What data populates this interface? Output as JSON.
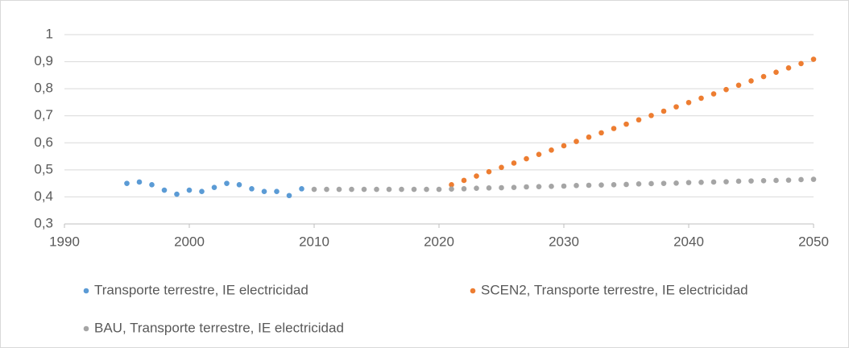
{
  "chart_data": {
    "type": "scatter",
    "xlim": [
      1990,
      2050
    ],
    "xticks": [
      1990,
      2000,
      2010,
      2020,
      2030,
      2040,
      2050
    ],
    "ylim": [
      0.3,
      1
    ],
    "yticks": [
      {
        "value": 0.3,
        "label": "0,3"
      },
      {
        "value": 0.4,
        "label": "0,4"
      },
      {
        "value": 0.5,
        "label": "0,5"
      },
      {
        "value": 0.6,
        "label": "0,6"
      },
      {
        "value": 0.7,
        "label": "0,7"
      },
      {
        "value": 0.8,
        "label": "0,8"
      },
      {
        "value": 0.9,
        "label": "0,9"
      },
      {
        "value": 1,
        "label": "1"
      }
    ],
    "grid": true,
    "legend": "bottom",
    "series": [
      {
        "name": "Transporte terrestre, IE electricidad",
        "color": "#5b9bd5",
        "x": [
          1995,
          1996,
          1997,
          1998,
          1999,
          2000,
          2001,
          2002,
          2003,
          2004,
          2005,
          2006,
          2007,
          2008,
          2009
        ],
        "values": [
          0.45,
          0.455,
          0.445,
          0.425,
          0.41,
          0.425,
          0.42,
          0.435,
          0.45,
          0.445,
          0.43,
          0.42,
          0.42,
          0.405,
          0.43
        ]
      },
      {
        "name": "SCEN2, Transporte terrestre, IE electricidad",
        "color": "#ed7d31",
        "x": [
          2021,
          2022,
          2023,
          2024,
          2025,
          2026,
          2027,
          2028,
          2029,
          2030,
          2031,
          2032,
          2033,
          2034,
          2035,
          2036,
          2037,
          2038,
          2039,
          2040,
          2041,
          2042,
          2043,
          2044,
          2045,
          2046,
          2047,
          2048,
          2049,
          2050
        ],
        "values": [
          0.445,
          0.461,
          0.477,
          0.493,
          0.509,
          0.525,
          0.541,
          0.557,
          0.573,
          0.589,
          0.605,
          0.621,
          0.637,
          0.653,
          0.669,
          0.685,
          0.701,
          0.717,
          0.733,
          0.749,
          0.765,
          0.781,
          0.797,
          0.813,
          0.829,
          0.845,
          0.861,
          0.877,
          0.893,
          0.909
        ]
      },
      {
        "name": "BAU, Transporte terrestre, IE electricidad",
        "color": "#a5a5a5",
        "x": [
          2010,
          2011,
          2012,
          2013,
          2014,
          2015,
          2016,
          2017,
          2018,
          2019,
          2020,
          2021,
          2022,
          2023,
          2024,
          2025,
          2026,
          2027,
          2028,
          2029,
          2030,
          2031,
          2032,
          2033,
          2034,
          2035,
          2036,
          2037,
          2038,
          2039,
          2040,
          2041,
          2042,
          2043,
          2044,
          2045,
          2046,
          2047,
          2048,
          2049,
          2050
        ],
        "values": [
          0.428,
          0.428,
          0.428,
          0.428,
          0.428,
          0.428,
          0.428,
          0.428,
          0.428,
          0.428,
          0.428,
          0.429,
          0.43,
          0.432,
          0.433,
          0.434,
          0.435,
          0.437,
          0.438,
          0.439,
          0.44,
          0.442,
          0.443,
          0.444,
          0.445,
          0.446,
          0.448,
          0.449,
          0.45,
          0.451,
          0.453,
          0.454,
          0.455,
          0.456,
          0.458,
          0.459,
          0.46,
          0.461,
          0.462,
          0.464,
          0.465
        ]
      }
    ]
  }
}
